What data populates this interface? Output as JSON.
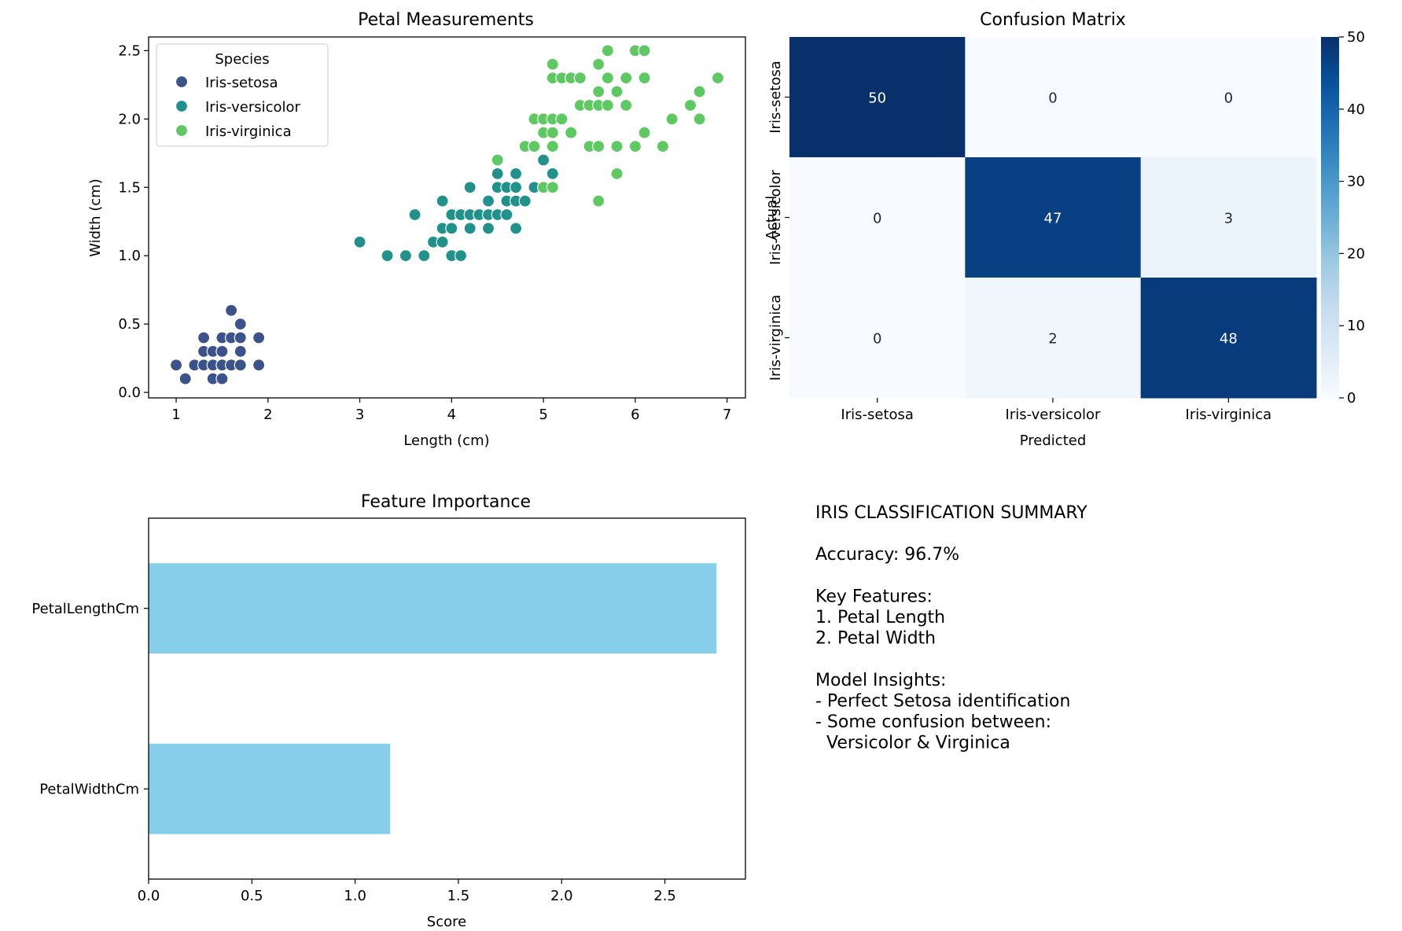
{
  "chart_data": [
    {
      "type": "scatter",
      "title": "Petal Measurements",
      "xlabel": "Length (cm)",
      "ylabel": "Width (cm)",
      "xlim": [
        0.7,
        7.2
      ],
      "ylim": [
        -0.04,
        2.6
      ],
      "xticks": [
        1,
        2,
        3,
        4,
        5,
        6,
        7
      ],
      "yticks": [
        0.0,
        0.5,
        1.0,
        1.5,
        2.0,
        2.5
      ],
      "legend": {
        "title": "Species",
        "placement": "top-left"
      },
      "series": [
        {
          "name": "Iris-setosa",
          "color": "#3b528b",
          "points": [
            [
              1.0,
              0.2
            ],
            [
              1.1,
              0.1
            ],
            [
              1.2,
              0.2
            ],
            [
              1.3,
              0.2
            ],
            [
              1.3,
              0.3
            ],
            [
              1.3,
              0.4
            ],
            [
              1.4,
              0.1
            ],
            [
              1.4,
              0.2
            ],
            [
              1.4,
              0.3
            ],
            [
              1.5,
              0.1
            ],
            [
              1.5,
              0.2
            ],
            [
              1.5,
              0.3
            ],
            [
              1.5,
              0.4
            ],
            [
              1.6,
              0.2
            ],
            [
              1.6,
              0.4
            ],
            [
              1.6,
              0.6
            ],
            [
              1.7,
              0.2
            ],
            [
              1.7,
              0.3
            ],
            [
              1.7,
              0.4
            ],
            [
              1.7,
              0.5
            ],
            [
              1.9,
              0.2
            ],
            [
              1.9,
              0.4
            ]
          ]
        },
        {
          "name": "Iris-versicolor",
          "color": "#21918c",
          "points": [
            [
              3.0,
              1.1
            ],
            [
              3.3,
              1.0
            ],
            [
              3.5,
              1.0
            ],
            [
              3.6,
              1.3
            ],
            [
              3.7,
              1.0
            ],
            [
              3.8,
              1.1
            ],
            [
              3.9,
              1.1
            ],
            [
              3.9,
              1.2
            ],
            [
              3.9,
              1.4
            ],
            [
              4.0,
              1.0
            ],
            [
              4.0,
              1.2
            ],
            [
              4.0,
              1.3
            ],
            [
              4.1,
              1.0
            ],
            [
              4.1,
              1.3
            ],
            [
              4.2,
              1.2
            ],
            [
              4.2,
              1.3
            ],
            [
              4.2,
              1.5
            ],
            [
              4.3,
              1.3
            ],
            [
              4.4,
              1.2
            ],
            [
              4.4,
              1.3
            ],
            [
              4.4,
              1.4
            ],
            [
              4.5,
              1.3
            ],
            [
              4.5,
              1.5
            ],
            [
              4.5,
              1.6
            ],
            [
              4.6,
              1.3
            ],
            [
              4.6,
              1.4
            ],
            [
              4.6,
              1.5
            ],
            [
              4.7,
              1.2
            ],
            [
              4.7,
              1.4
            ],
            [
              4.7,
              1.5
            ],
            [
              4.7,
              1.6
            ],
            [
              4.8,
              1.4
            ],
            [
              4.8,
              1.8
            ],
            [
              4.9,
              1.5
            ],
            [
              5.0,
              1.7
            ],
            [
              5.1,
              1.6
            ]
          ]
        },
        {
          "name": "Iris-virginica",
          "color": "#5ec962",
          "points": [
            [
              4.5,
              1.7
            ],
            [
              4.8,
              1.8
            ],
            [
              4.9,
              1.8
            ],
            [
              4.9,
              2.0
            ],
            [
              5.0,
              1.5
            ],
            [
              5.0,
              1.9
            ],
            [
              5.0,
              2.0
            ],
            [
              5.1,
              1.5
            ],
            [
              5.1,
              1.8
            ],
            [
              5.1,
              1.9
            ],
            [
              5.1,
              2.0
            ],
            [
              5.1,
              2.3
            ],
            [
              5.1,
              2.4
            ],
            [
              5.2,
              2.0
            ],
            [
              5.2,
              2.3
            ],
            [
              5.3,
              1.9
            ],
            [
              5.3,
              2.3
            ],
            [
              5.4,
              2.1
            ],
            [
              5.4,
              2.3
            ],
            [
              5.5,
              1.8
            ],
            [
              5.5,
              2.1
            ],
            [
              5.6,
              1.4
            ],
            [
              5.6,
              1.8
            ],
            [
              5.6,
              2.1
            ],
            [
              5.6,
              2.2
            ],
            [
              5.6,
              2.4
            ],
            [
              5.7,
              2.1
            ],
            [
              5.7,
              2.3
            ],
            [
              5.7,
              2.5
            ],
            [
              5.8,
              1.6
            ],
            [
              5.8,
              1.8
            ],
            [
              5.8,
              2.2
            ],
            [
              5.9,
              2.1
            ],
            [
              5.9,
              2.3
            ],
            [
              6.0,
              1.8
            ],
            [
              6.0,
              2.5
            ],
            [
              6.1,
              1.9
            ],
            [
              6.1,
              2.3
            ],
            [
              6.1,
              2.5
            ],
            [
              6.3,
              1.8
            ],
            [
              6.4,
              2.0
            ],
            [
              6.6,
              2.1
            ],
            [
              6.7,
              2.0
            ],
            [
              6.7,
              2.2
            ],
            [
              6.9,
              2.3
            ]
          ]
        }
      ]
    },
    {
      "type": "heatmap",
      "title": "Confusion Matrix",
      "xlabel": "Predicted",
      "ylabel": "Actual",
      "x_categories": [
        "Iris-setosa",
        "Iris-versicolor",
        "Iris-virginica"
      ],
      "y_categories": [
        "Iris-setosa",
        "Iris-versicolor",
        "Iris-virginica"
      ],
      "values": [
        [
          50,
          0,
          0
        ],
        [
          0,
          47,
          3
        ],
        [
          0,
          2,
          48
        ]
      ],
      "colorbar": {
        "min": 0,
        "max": 50,
        "ticks": [
          0,
          10,
          20,
          30,
          40,
          50
        ]
      },
      "colormap": "Blues"
    },
    {
      "type": "bar",
      "orientation": "horizontal",
      "title": "Feature Importance",
      "xlabel": "Score",
      "ylabel": "",
      "categories": [
        "PetalLengthCm",
        "PetalWidthCm"
      ],
      "values": [
        2.75,
        1.17
      ],
      "color": "#87ceeb",
      "xlim": [
        0,
        2.89
      ],
      "xticks": [
        0.0,
        0.5,
        1.0,
        1.5,
        2.0,
        2.5
      ]
    }
  ],
  "summary": {
    "lines": [
      "IRIS CLASSIFICATION SUMMARY",
      "",
      "Accuracy: 96.7%",
      "",
      "Key Features:",
      "1. Petal Length",
      "2. Petal Width",
      "",
      "Model Insights:",
      "- Perfect Setosa identification",
      "- Some confusion between:",
      "  Versicolor & Virginica"
    ]
  }
}
